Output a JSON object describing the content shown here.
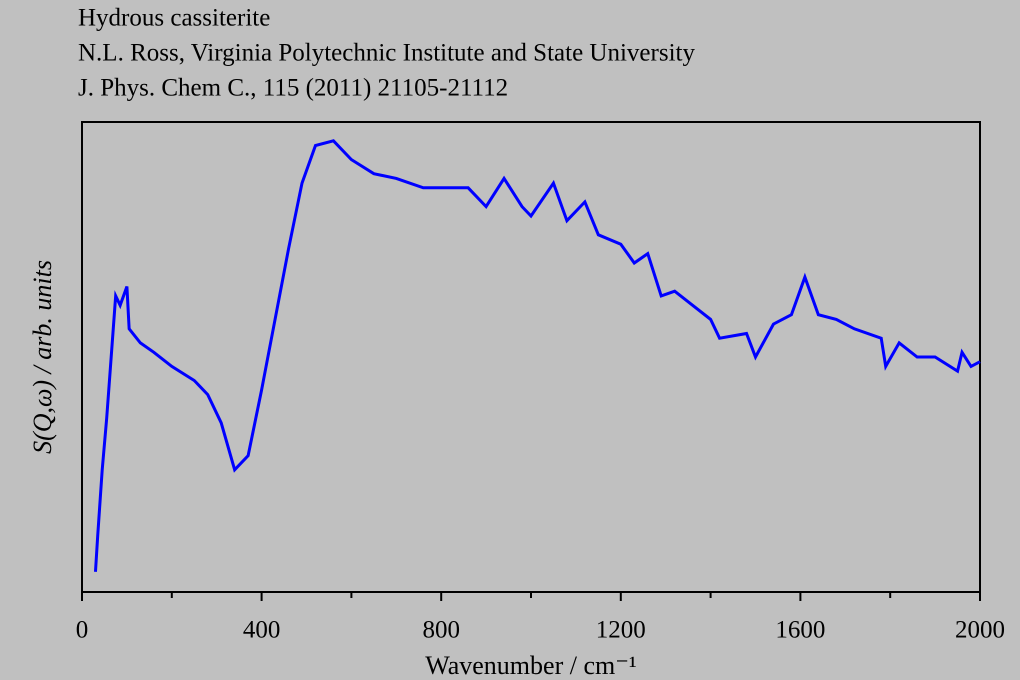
{
  "chart_data": {
    "type": "line",
    "title": "Hydrous cassiterite",
    "subtitle": "N.L. Ross, Virginia Polytechnic Institute and State University",
    "annotation": "J. Phys. Chem C., 115 (2011) 21105-21112",
    "xlabel": "Wavenumber / cm⁻¹",
    "ylabel": "S(Q,ω) / arb. units",
    "x": [
      30,
      35,
      45,
      55,
      65,
      75,
      85,
      100,
      105,
      130,
      160,
      200,
      250,
      280,
      310,
      340,
      370,
      400,
      430,
      460,
      490,
      520,
      560,
      600,
      650,
      700,
      760,
      800,
      860,
      900,
      940,
      980,
      1000,
      1050,
      1080,
      1120,
      1150,
      1200,
      1230,
      1260,
      1290,
      1320,
      1360,
      1400,
      1420,
      1480,
      1500,
      1540,
      1580,
      1610,
      1640,
      1680,
      1720,
      1780,
      1790,
      1820,
      1860,
      1900,
      1950,
      1960,
      1980,
      2000
    ],
    "series": [
      {
        "name": "Hydrous cassiterite",
        "color": "#0000ff",
        "values": [
          4.3,
          12,
          26,
          37,
          50,
          63,
          61,
          65,
          56,
          53,
          51,
          48,
          45,
          42,
          36,
          26,
          29,
          43,
          58,
          73,
          87,
          95,
          96,
          92,
          89,
          88,
          86,
          86,
          86,
          82,
          88,
          82,
          80,
          87,
          79,
          83,
          76,
          74,
          70,
          72,
          63,
          64,
          61,
          58,
          54,
          55,
          50,
          57,
          59,
          67,
          59,
          58,
          56,
          54,
          48,
          53,
          50,
          50,
          47,
          51,
          48,
          49
        ]
      }
    ],
    "xlim": [
      0,
      2000
    ],
    "xticks": [
      0,
      400,
      800,
      1200,
      1600,
      2000
    ],
    "xminorticks": [
      200,
      600,
      1000,
      1400,
      1800
    ],
    "ylim": [
      0,
      100
    ]
  }
}
